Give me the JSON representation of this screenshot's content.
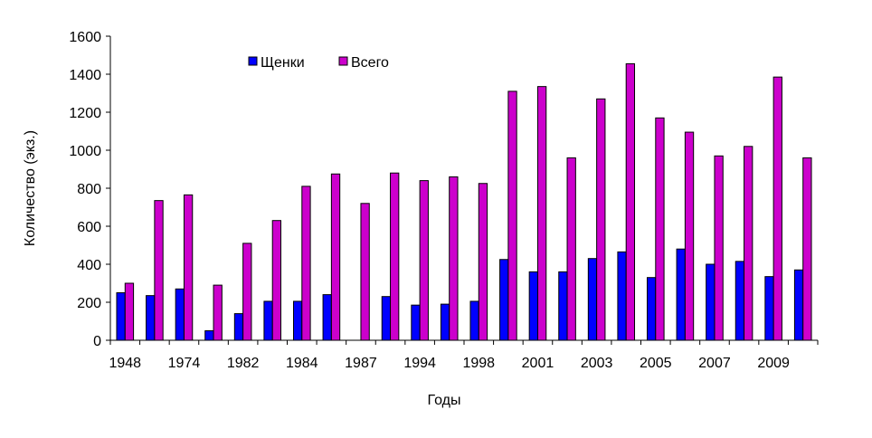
{
  "chart_data": {
    "type": "bar",
    "title": "",
    "xlabel": "Годы",
    "ylabel": "Количество (экз.)",
    "ylim": [
      0,
      1600
    ],
    "yticks": [
      0,
      200,
      400,
      600,
      800,
      1000,
      1200,
      1400,
      1600
    ],
    "grid": false,
    "legend_position": "top-center",
    "categories": [
      "1948",
      "",
      "1974",
      "",
      "1982",
      "",
      "1984",
      "",
      "1987",
      "",
      "1994",
      "",
      "1998",
      "",
      "2001",
      "",
      "2003",
      "",
      "2005",
      "",
      "2007",
      "",
      "2009",
      ""
    ],
    "series": [
      {
        "name": "Щенки",
        "color": "#0000ff",
        "values": [
          250,
          235,
          270,
          50,
          140,
          205,
          205,
          240,
          null,
          230,
          185,
          190,
          205,
          425,
          360,
          360,
          430,
          465,
          330,
          480,
          400,
          415,
          335,
          370
        ]
      },
      {
        "name": "Всего",
        "color": "#cc00cc",
        "values": [
          300,
          735,
          765,
          290,
          510,
          630,
          810,
          875,
          720,
          880,
          840,
          860,
          825,
          1310,
          1335,
          960,
          1270,
          1455,
          1170,
          1095,
          970,
          1020,
          1385,
          960
        ]
      }
    ]
  }
}
